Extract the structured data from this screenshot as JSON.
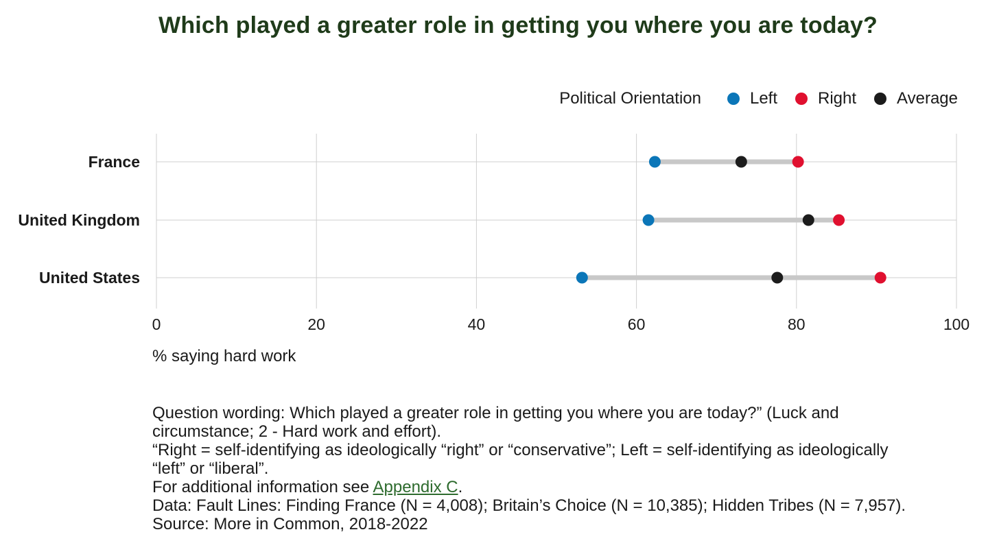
{
  "title": "Which played a greater role in getting you where you are today?",
  "legend": {
    "title": "Political Orientation",
    "items": [
      {
        "label": "Left",
        "color": "#0b76b8"
      },
      {
        "label": "Right",
        "color": "#e0102f"
      },
      {
        "label": "Average",
        "color": "#1c1c1c"
      }
    ]
  },
  "chart_data": {
    "type": "dumbbell",
    "categories": [
      "France",
      "United Kingdom",
      "United States"
    ],
    "series": [
      {
        "name": "Left",
        "color": "#0b76b8",
        "values": [
          62.3,
          61.5,
          53.2
        ]
      },
      {
        "name": "Right",
        "color": "#e0102f",
        "values": [
          80.2,
          85.3,
          90.5
        ]
      },
      {
        "name": "Average",
        "color": "#1c1c1c",
        "values": [
          73.1,
          81.5,
          77.6
        ]
      }
    ],
    "xlim": [
      0,
      100
    ],
    "xticks": [
      "0",
      "20",
      "40",
      "60",
      "80",
      "100"
    ],
    "xlabel": "% saying hard work",
    "connector_color": "#c8c8c8",
    "grid": true
  },
  "notes": {
    "line1": "Question wording: Which played a greater role in getting you where you are today?” (Luck and",
    "line2": "circumstance; 2 - Hard work and effort).",
    "line3": "“Right = self-identifying as ideologically “right” or “conservative”; Left = self-identifying as ideologically",
    "line4": "“left” or “liberal”.",
    "line5_prefix": "For additional information see ",
    "line5_link": "Appendix C",
    "line5_suffix": ".",
    "line6": "Data: Fault Lines: Finding France (N = 4,008); Britain’s Choice (N = 10,385); Hidden Tribes (N = 7,957).",
    "line7": "Source: More in Common, 2018-2022"
  }
}
